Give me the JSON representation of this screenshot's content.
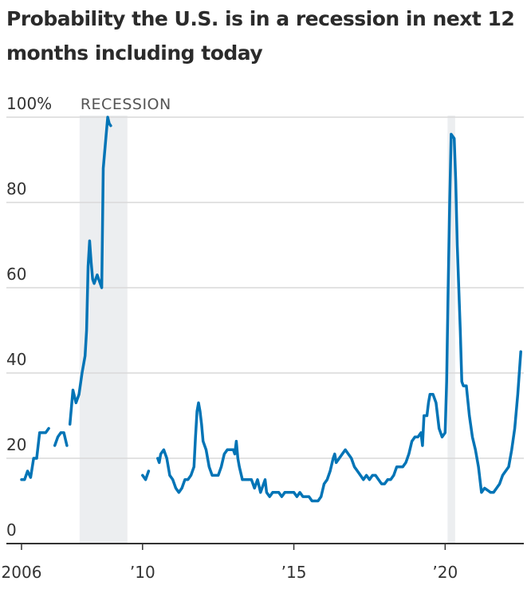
{
  "chart_data": {
    "type": "line",
    "title": "Probability the U.S. is in a recession in next 12 months including today",
    "xlabel": "",
    "ylabel": "",
    "ylim": [
      0,
      100
    ],
    "xlim": [
      2005.5,
      2022.6
    ],
    "y_ticks": [
      {
        "value": 0,
        "label": "0"
      },
      {
        "value": 20,
        "label": "20"
      },
      {
        "value": 40,
        "label": "40"
      },
      {
        "value": 60,
        "label": "60"
      },
      {
        "value": 80,
        "label": "80"
      },
      {
        "value": 100,
        "label": "100%"
      }
    ],
    "x_ticks": [
      {
        "value": 2006,
        "label": "2006"
      },
      {
        "value": 2010,
        "label": "’10"
      },
      {
        "value": 2015,
        "label": "’15"
      },
      {
        "value": 2020,
        "label": "’20"
      }
    ],
    "recession_bands": [
      {
        "label": "RECESSION",
        "start": 2007.92,
        "end": 2009.5
      },
      {
        "label": "",
        "start": 2020.08,
        "end": 2020.33
      }
    ],
    "grid": true,
    "series_color": "#0274b6",
    "series": [
      {
        "segments": [
          [
            [
              2006.0,
              15
            ],
            [
              2006.1,
              15
            ],
            [
              2006.2,
              17
            ],
            [
              2006.3,
              15.5
            ],
            [
              2006.4,
              20
            ],
            [
              2006.5,
              20
            ],
            [
              2006.6,
              26
            ],
            [
              2006.7,
              26
            ],
            [
              2006.8,
              26
            ],
            [
              2006.9,
              27
            ]
          ],
          [
            [
              2007.1,
              23
            ],
            [
              2007.2,
              25
            ],
            [
              2007.3,
              26
            ],
            [
              2007.4,
              26
            ],
            [
              2007.5,
              23
            ]
          ],
          [
            [
              2007.6,
              28
            ],
            [
              2007.7,
              36
            ],
            [
              2007.8,
              33
            ],
            [
              2007.9,
              35
            ],
            [
              2008.0,
              40
            ],
            [
              2008.1,
              44
            ],
            [
              2008.15,
              50
            ],
            [
              2008.2,
              65
            ],
            [
              2008.25,
              71
            ],
            [
              2008.3,
              66
            ],
            [
              2008.35,
              62
            ],
            [
              2008.4,
              61
            ],
            [
              2008.45,
              62
            ],
            [
              2008.5,
              63
            ],
            [
              2008.55,
              62
            ],
            [
              2008.6,
              61
            ],
            [
              2008.65,
              60
            ],
            [
              2008.7,
              88
            ],
            [
              2008.8,
              96
            ],
            [
              2008.85,
              100
            ],
            [
              2008.9,
              98.5
            ],
            [
              2008.95,
              98
            ]
          ],
          [
            [
              2010.0,
              16
            ],
            [
              2010.1,
              15
            ],
            [
              2010.2,
              17
            ]
          ],
          [
            [
              2010.5,
              20
            ],
            [
              2010.55,
              19
            ],
            [
              2010.6,
              21
            ],
            [
              2010.7,
              22
            ],
            [
              2010.8,
              20
            ],
            [
              2010.9,
              16
            ],
            [
              2011.0,
              15
            ],
            [
              2011.1,
              13
            ],
            [
              2011.2,
              12
            ],
            [
              2011.3,
              13
            ],
            [
              2011.4,
              15
            ],
            [
              2011.5,
              15
            ],
            [
              2011.6,
              16
            ],
            [
              2011.7,
              18
            ],
            [
              2011.75,
              25
            ],
            [
              2011.8,
              31
            ],
            [
              2011.85,
              33
            ],
            [
              2011.9,
              31
            ],
            [
              2011.95,
              28
            ],
            [
              2012.0,
              24
            ],
            [
              2012.1,
              22
            ],
            [
              2012.2,
              18
            ],
            [
              2012.3,
              16
            ],
            [
              2012.4,
              16
            ],
            [
              2012.5,
              16
            ],
            [
              2012.6,
              18
            ],
            [
              2012.7,
              21
            ],
            [
              2012.8,
              22
            ],
            [
              2012.9,
              22
            ],
            [
              2013.0,
              22
            ],
            [
              2013.05,
              21
            ],
            [
              2013.1,
              24
            ],
            [
              2013.15,
              20
            ],
            [
              2013.2,
              18
            ],
            [
              2013.3,
              15
            ],
            [
              2013.4,
              15
            ],
            [
              2013.5,
              15
            ],
            [
              2013.6,
              15
            ],
            [
              2013.7,
              13
            ],
            [
              2013.8,
              15
            ],
            [
              2013.9,
              12
            ],
            [
              2014.0,
              14
            ],
            [
              2014.05,
              15
            ],
            [
              2014.1,
              12
            ],
            [
              2014.2,
              11
            ],
            [
              2014.3,
              12
            ],
            [
              2014.4,
              12
            ],
            [
              2014.5,
              12
            ],
            [
              2014.6,
              11
            ],
            [
              2014.7,
              12
            ],
            [
              2014.8,
              12
            ],
            [
              2014.9,
              12
            ],
            [
              2015.0,
              12
            ],
            [
              2015.1,
              11
            ],
            [
              2015.2,
              12
            ],
            [
              2015.3,
              11
            ],
            [
              2015.4,
              11
            ],
            [
              2015.5,
              11
            ],
            [
              2015.6,
              10
            ],
            [
              2015.7,
              10
            ],
            [
              2015.8,
              10
            ],
            [
              2015.9,
              11
            ],
            [
              2016.0,
              14
            ],
            [
              2016.1,
              15
            ],
            [
              2016.2,
              17
            ],
            [
              2016.3,
              20
            ],
            [
              2016.35,
              21
            ],
            [
              2016.4,
              19
            ],
            [
              2016.5,
              20
            ],
            [
              2016.6,
              21
            ],
            [
              2016.7,
              22
            ],
            [
              2016.8,
              21
            ],
            [
              2016.9,
              20
            ],
            [
              2017.0,
              18
            ],
            [
              2017.1,
              17
            ],
            [
              2017.2,
              16
            ],
            [
              2017.3,
              15
            ],
            [
              2017.4,
              16
            ],
            [
              2017.5,
              15
            ],
            [
              2017.6,
              16
            ],
            [
              2017.7,
              16
            ],
            [
              2017.8,
              15
            ],
            [
              2017.9,
              14
            ],
            [
              2018.0,
              14
            ],
            [
              2018.1,
              15
            ],
            [
              2018.2,
              15
            ],
            [
              2018.3,
              16
            ],
            [
              2018.4,
              18
            ],
            [
              2018.5,
              18
            ],
            [
              2018.6,
              18
            ],
            [
              2018.7,
              19
            ],
            [
              2018.8,
              21
            ],
            [
              2018.9,
              24
            ],
            [
              2019.0,
              25
            ],
            [
              2019.1,
              25
            ],
            [
              2019.2,
              26
            ],
            [
              2019.25,
              23
            ],
            [
              2019.3,
              30
            ],
            [
              2019.4,
              30
            ],
            [
              2019.45,
              33
            ],
            [
              2019.5,
              35
            ],
            [
              2019.6,
              35
            ],
            [
              2019.7,
              33
            ],
            [
              2019.8,
              27
            ],
            [
              2019.9,
              25
            ],
            [
              2020.0,
              26
            ],
            [
              2020.05,
              38
            ],
            [
              2020.1,
              60
            ],
            [
              2020.15,
              80
            ],
            [
              2020.2,
              96
            ],
            [
              2020.3,
              95
            ],
            [
              2020.35,
              85
            ],
            [
              2020.4,
              70
            ],
            [
              2020.5,
              50
            ],
            [
              2020.55,
              38
            ],
            [
              2020.6,
              37
            ],
            [
              2020.7,
              37
            ],
            [
              2020.8,
              30
            ],
            [
              2020.9,
              25
            ],
            [
              2021.0,
              22
            ],
            [
              2021.1,
              18
            ],
            [
              2021.15,
              15
            ],
            [
              2021.2,
              12
            ],
            [
              2021.3,
              13
            ],
            [
              2021.4,
              12.5
            ],
            [
              2021.5,
              12
            ],
            [
              2021.6,
              12
            ],
            [
              2021.7,
              13
            ],
            [
              2021.8,
              14
            ],
            [
              2021.9,
              16
            ],
            [
              2022.0,
              17
            ],
            [
              2022.1,
              18
            ],
            [
              2022.2,
              22
            ],
            [
              2022.3,
              27
            ],
            [
              2022.4,
              35
            ],
            [
              2022.5,
              45
            ]
          ]
        ]
      }
    ]
  }
}
